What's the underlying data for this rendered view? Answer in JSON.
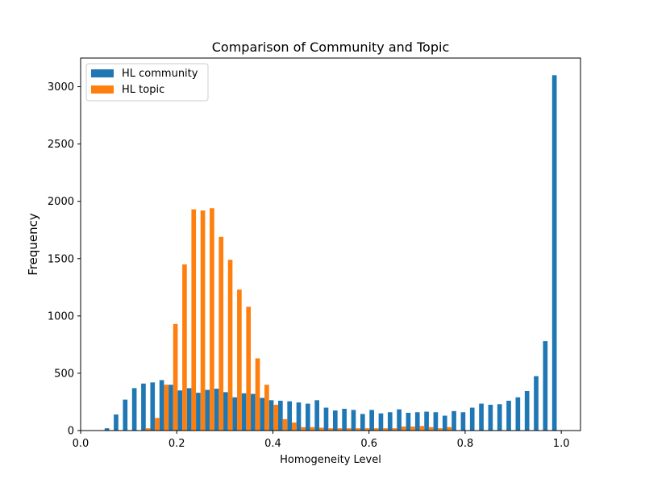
{
  "chart_data": {
    "type": "bar",
    "title": "Comparison of Community and Topic",
    "xlabel": "Homogeneity Level",
    "ylabel": "Frequency",
    "xlim": [
      0.0,
      1.04
    ],
    "ylim": [
      0,
      3250
    ],
    "xticks": [
      0.0,
      0.2,
      0.4,
      0.6,
      0.8,
      1.0
    ],
    "xtick_labels": [
      "0.0",
      "0.2",
      "0.4",
      "0.6",
      "0.8",
      "1.0"
    ],
    "yticks": [
      0,
      500,
      1000,
      1500,
      2000,
      2500,
      3000
    ],
    "ytick_labels": [
      "0",
      "500",
      "1000",
      "1500",
      "2000",
      "2500",
      "3000"
    ],
    "grid": false,
    "legend_position": "top-left",
    "bin_width": 0.019,
    "x": [
      0.05,
      0.069,
      0.088,
      0.107,
      0.126,
      0.145,
      0.164,
      0.183,
      0.202,
      0.221,
      0.24,
      0.259,
      0.278,
      0.297,
      0.316,
      0.335,
      0.354,
      0.373,
      0.392,
      0.411,
      0.43,
      0.449,
      0.468,
      0.487,
      0.506,
      0.525,
      0.544,
      0.563,
      0.582,
      0.601,
      0.62,
      0.639,
      0.658,
      0.677,
      0.696,
      0.715,
      0.734,
      0.753,
      0.772,
      0.791,
      0.81,
      0.829,
      0.848,
      0.867,
      0.886,
      0.905,
      0.924,
      0.943,
      0.962,
      0.981
    ],
    "series": [
      {
        "name": "HL community",
        "color": "#1f77b4",
        "values": [
          20,
          140,
          270,
          370,
          410,
          420,
          440,
          400,
          350,
          370,
          330,
          355,
          365,
          335,
          290,
          325,
          320,
          285,
          265,
          260,
          255,
          245,
          235,
          265,
          200,
          175,
          190,
          180,
          145,
          180,
          150,
          160,
          185,
          155,
          160,
          165,
          160,
          130,
          170,
          160,
          200,
          235,
          225,
          230,
          260,
          290,
          345,
          475,
          780,
          3100
        ]
      },
      {
        "name": "HL topic",
        "color": "#ff7f0e",
        "values": [
          0,
          0,
          0,
          0,
          20,
          110,
          400,
          930,
          1450,
          1930,
          1920,
          1940,
          1690,
          1490,
          1230,
          1080,
          630,
          400,
          225,
          100,
          70,
          30,
          30,
          25,
          20,
          20,
          20,
          20,
          20,
          20,
          20,
          20,
          35,
          35,
          40,
          30,
          20,
          30,
          0,
          0,
          0,
          0,
          0,
          0,
          0,
          0,
          0,
          0,
          0,
          0
        ]
      }
    ]
  }
}
